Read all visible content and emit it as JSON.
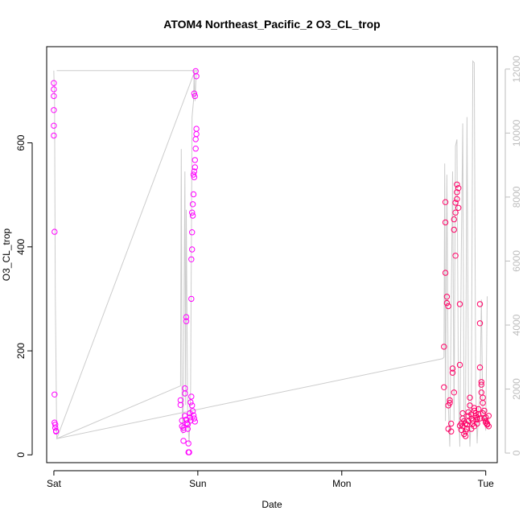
{
  "chart_data": {
    "type": "scatter",
    "title": "ATOM4 Northeast_Pacific_2 O3_CL_trop",
    "xlabel": "Date",
    "ylabel": "O3_CL_trop",
    "x_ticks": [
      "Sat",
      "Sun",
      "Mon",
      "Tue"
    ],
    "x_range_days": [
      -0.05,
      3.08
    ],
    "y_left": {
      "range": [
        -15,
        785
      ],
      "ticks": [
        0,
        200,
        400,
        600
      ]
    },
    "y_right": {
      "range": [
        -300,
        12700
      ],
      "ticks": [
        0,
        2000,
        4000,
        6000,
        8000,
        10000,
        12000
      ],
      "color": "#bdbdbd"
    },
    "grid": false,
    "colors": {
      "scatter": [
        "#ff00ff",
        "#ff0066"
      ],
      "line": "#cccccc"
    },
    "series": [
      {
        "axis": "left",
        "marker": "open-circle",
        "points": [
          [
            0.0,
            715
          ],
          [
            0.0,
            703
          ],
          [
            0.0,
            690
          ],
          [
            0.0,
            663
          ],
          [
            0.0,
            633
          ],
          [
            0.0,
            614
          ],
          [
            0.005,
            429
          ],
          [
            0.005,
            116
          ],
          [
            0.005,
            62
          ],
          [
            0.01,
            58
          ],
          [
            0.01,
            52
          ],
          [
            0.015,
            46
          ],
          [
            0.015,
            45
          ],
          [
            0.88,
            105
          ],
          [
            0.88,
            96
          ],
          [
            0.89,
            66
          ],
          [
            0.89,
            55
          ],
          [
            0.9,
            52
          ],
          [
            0.9,
            48
          ],
          [
            0.9,
            27
          ],
          [
            0.91,
            128
          ],
          [
            0.91,
            118
          ],
          [
            0.91,
            75
          ],
          [
            0.92,
            265
          ],
          [
            0.92,
            257
          ],
          [
            0.92,
            68
          ],
          [
            0.925,
            61
          ],
          [
            0.93,
            58
          ],
          [
            0.93,
            50
          ],
          [
            0.935,
            22
          ],
          [
            0.935,
            5
          ],
          [
            0.94,
            5
          ],
          [
            0.945,
            80
          ],
          [
            0.945,
            72
          ],
          [
            0.95,
            101
          ],
          [
            0.95,
            66
          ],
          [
            0.955,
            300
          ],
          [
            0.955,
            376
          ],
          [
            0.96,
            395
          ],
          [
            0.96,
            428
          ],
          [
            0.96,
            466
          ],
          [
            0.965,
            460
          ],
          [
            0.965,
            482
          ],
          [
            0.97,
            501
          ],
          [
            0.97,
            539
          ],
          [
            0.975,
            534
          ],
          [
            0.975,
            545
          ],
          [
            0.98,
            553
          ],
          [
            0.98,
            567
          ],
          [
            0.985,
            589
          ],
          [
            0.985,
            607
          ],
          [
            0.99,
            617
          ],
          [
            0.99,
            627
          ],
          [
            0.975,
            695
          ],
          [
            0.98,
            690
          ],
          [
            0.985,
            738
          ],
          [
            0.99,
            728
          ],
          [
            0.955,
            112
          ],
          [
            0.96,
            95
          ],
          [
            0.965,
            84
          ],
          [
            0.97,
            76
          ],
          [
            0.975,
            70
          ],
          [
            0.98,
            64
          ],
          [
            2.71,
            130
          ],
          [
            2.71,
            208
          ],
          [
            2.72,
            486
          ],
          [
            2.72,
            447
          ],
          [
            2.72,
            350
          ],
          [
            2.73,
            304
          ],
          [
            2.73,
            292
          ],
          [
            2.74,
            286
          ],
          [
            2.74,
            95
          ],
          [
            2.74,
            50
          ],
          [
            2.75,
            105
          ],
          [
            2.75,
            100
          ],
          [
            2.76,
            60
          ],
          [
            2.76,
            45
          ],
          [
            2.77,
            166
          ],
          [
            2.77,
            158
          ],
          [
            2.78,
            120
          ],
          [
            2.78,
            433
          ],
          [
            2.78,
            453
          ],
          [
            2.79,
            383
          ],
          [
            2.79,
            466
          ],
          [
            2.79,
            485
          ],
          [
            2.8,
            492
          ],
          [
            2.8,
            520
          ],
          [
            2.8,
            505
          ],
          [
            2.81,
            513
          ],
          [
            2.81,
            475
          ],
          [
            2.82,
            173
          ],
          [
            2.82,
            290
          ],
          [
            2.82,
            56
          ],
          [
            2.83,
            48
          ],
          [
            2.83,
            60
          ],
          [
            2.84,
            70
          ],
          [
            2.84,
            80
          ],
          [
            2.85,
            65
          ],
          [
            2.85,
            40
          ],
          [
            2.86,
            36
          ],
          [
            2.86,
            45
          ],
          [
            2.87,
            50
          ],
          [
            2.87,
            58
          ],
          [
            2.88,
            75
          ],
          [
            2.88,
            82
          ],
          [
            2.89,
            95
          ],
          [
            2.89,
            110
          ],
          [
            2.9,
            78
          ],
          [
            2.9,
            70
          ],
          [
            2.91,
            66
          ],
          [
            2.91,
            60
          ],
          [
            2.92,
            85
          ],
          [
            2.92,
            90
          ],
          [
            2.93,
            80
          ],
          [
            2.93,
            75
          ],
          [
            2.94,
            72
          ],
          [
            2.94,
            68
          ],
          [
            2.95,
            88
          ],
          [
            2.95,
            78
          ],
          [
            2.96,
            290
          ],
          [
            2.96,
            253
          ],
          [
            2.96,
            168
          ],
          [
            2.97,
            140
          ],
          [
            2.97,
            135
          ],
          [
            2.97,
            120
          ],
          [
            2.98,
            110
          ],
          [
            2.98,
            100
          ],
          [
            2.99,
            85
          ],
          [
            2.99,
            70
          ],
          [
            3.0,
            65
          ],
          [
            3.0,
            62
          ],
          [
            3.01,
            60
          ],
          [
            3.01,
            58
          ],
          [
            3.02,
            75
          ],
          [
            3.02,
            55
          ],
          [
            2.84,
            55
          ],
          [
            2.86,
            60
          ],
          [
            2.88,
            65
          ],
          [
            2.9,
            50
          ],
          [
            2.92,
            55
          ],
          [
            2.94,
            60
          ],
          [
            2.96,
            70
          ],
          [
            2.98,
            80
          ],
          [
            3.0,
            72
          ]
        ]
      },
      {
        "axis": "right",
        "line": true,
        "points": [
          [
            0.0,
            11950
          ],
          [
            0.0,
            11900
          ],
          [
            0.005,
            11000
          ],
          [
            0.01,
            5000
          ],
          [
            0.015,
            2800
          ],
          [
            0.02,
            450
          ],
          [
            0.88,
            2100
          ],
          [
            0.885,
            9500
          ],
          [
            0.89,
            2000
          ],
          [
            0.895,
            600
          ],
          [
            0.9,
            1800
          ],
          [
            0.91,
            8800
          ],
          [
            0.915,
            1500
          ],
          [
            0.92,
            7600
          ],
          [
            0.93,
            1000
          ],
          [
            0.94,
            300
          ],
          [
            0.95,
            2000
          ],
          [
            0.96,
            10500
          ],
          [
            0.97,
            11000
          ],
          [
            0.975,
            11950
          ],
          [
            0.98,
            11000
          ],
          [
            0.99,
            11950
          ],
          [
            1.0,
            11950
          ],
          [
            0.02,
            11950
          ],
          [
            0.98,
            11950
          ],
          [
            0.02,
            450
          ],
          [
            2.7,
            2950
          ],
          [
            2.71,
            3000
          ],
          [
            2.715,
            9050
          ],
          [
            2.72,
            1000
          ],
          [
            2.73,
            8700
          ],
          [
            2.74,
            1500
          ],
          [
            2.75,
            200
          ],
          [
            2.76,
            4400
          ],
          [
            2.77,
            8800
          ],
          [
            2.78,
            1000
          ],
          [
            2.79,
            9600
          ],
          [
            2.8,
            9800
          ],
          [
            2.81,
            2000
          ],
          [
            2.82,
            200
          ],
          [
            2.83,
            6200
          ],
          [
            2.84,
            10300
          ],
          [
            2.85,
            500
          ],
          [
            2.86,
            1200
          ],
          [
            2.87,
            10500
          ],
          [
            2.88,
            2000
          ],
          [
            2.89,
            200
          ],
          [
            2.9,
            1300
          ],
          [
            2.91,
            12250
          ],
          [
            2.92,
            12200
          ],
          [
            2.93,
            2000
          ],
          [
            2.94,
            300
          ],
          [
            2.95,
            1300
          ],
          [
            2.96,
            1800
          ],
          [
            2.97,
            4800
          ],
          [
            2.98,
            1000
          ],
          [
            2.99,
            1200
          ],
          [
            3.0,
            700
          ],
          [
            3.01,
            4900
          ]
        ]
      }
    ]
  }
}
